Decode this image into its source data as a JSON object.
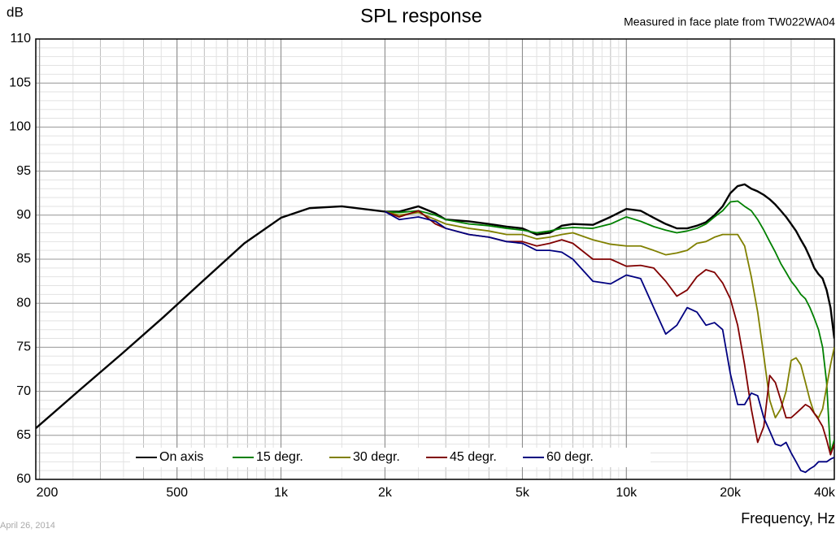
{
  "chart_data": {
    "type": "line",
    "title": "SPL response",
    "subtitle": "Measured in face plate from TW022WA04",
    "y_axis_label": "dB",
    "x_axis_label": "Frequency, Hz",
    "date": "April 26, 2014",
    "x_scale": "log",
    "grid": true,
    "legend_position": "bottom",
    "xlim": [
      195,
      40000
    ],
    "ylim": [
      60,
      110
    ],
    "xticks": [
      200,
      500,
      {
        "value": 1000,
        "label": "1k"
      },
      {
        "value": 2000,
        "label": "2k"
      },
      {
        "value": 5000,
        "label": "5k"
      },
      {
        "value": 10000,
        "label": "10k"
      },
      {
        "value": 20000,
        "label": "20k"
      },
      {
        "value": 40000,
        "label": "40k"
      }
    ],
    "yticks": [
      60,
      65,
      70,
      75,
      80,
      85,
      90,
      95,
      100,
      105,
      110
    ],
    "x": [
      195,
      264,
      347,
      456,
      597,
      783,
      1000,
      1210,
      1500,
      2000,
      2200,
      2500,
      2800,
      3000,
      3500,
      4000,
      4500,
      5000,
      5500,
      6000,
      6500,
      7000,
      8000,
      9000,
      10000,
      11000,
      12000,
      13000,
      14000,
      15000,
      16000,
      17000,
      18000,
      19000,
      20000,
      21000,
      22000,
      23000,
      24000,
      25000,
      26000,
      27000,
      28000,
      29000,
      30000,
      31000,
      32000,
      33000,
      34000,
      35000,
      36000,
      37000,
      38000,
      39000,
      40000
    ],
    "series": [
      {
        "name": "On axis",
        "color": "#000000",
        "values": [
          65.8,
          70.3,
          74.3,
          78.4,
          82.6,
          86.8,
          89.7,
          90.8,
          91.0,
          90.4,
          90.4,
          91.0,
          90.2,
          89.5,
          89.3,
          89.0,
          88.7,
          88.5,
          87.8,
          88.0,
          88.8,
          89.0,
          88.9,
          89.8,
          90.7,
          90.5,
          89.7,
          89.0,
          88.5,
          88.5,
          88.8,
          89.2,
          90.0,
          91.0,
          92.5,
          93.3,
          93.5,
          93.0,
          92.7,
          92.3,
          91.8,
          91.2,
          90.5,
          89.8,
          89.0,
          88.2,
          87.2,
          86.3,
          85.2,
          84.0,
          83.3,
          82.8,
          81.5,
          79.5,
          76.0
        ]
      },
      {
        "name": "15 degr.",
        "color": "#008000",
        "values": [
          null,
          null,
          null,
          null,
          null,
          null,
          null,
          null,
          null,
          90.4,
          90.3,
          90.5,
          90.0,
          89.5,
          89.0,
          88.8,
          88.5,
          88.3,
          88.0,
          88.2,
          88.5,
          88.6,
          88.5,
          89.0,
          89.8,
          89.3,
          88.7,
          88.3,
          88.0,
          88.2,
          88.5,
          89.0,
          89.8,
          90.5,
          91.5,
          91.6,
          91.0,
          90.5,
          89.5,
          88.3,
          87.0,
          85.8,
          84.5,
          83.5,
          82.5,
          81.8,
          81.0,
          80.5,
          79.5,
          78.3,
          77.0,
          75.0,
          71.0,
          63.0,
          64.5
        ]
      },
      {
        "name": "30 degr.",
        "color": "#808000",
        "values": [
          null,
          null,
          null,
          null,
          null,
          null,
          null,
          null,
          null,
          90.4,
          90.0,
          90.3,
          89.5,
          89.0,
          88.5,
          88.2,
          87.8,
          87.8,
          87.3,
          87.5,
          87.8,
          88.0,
          87.2,
          86.7,
          86.5,
          86.5,
          86.0,
          85.5,
          85.7,
          86.0,
          86.8,
          87.0,
          87.5,
          87.8,
          87.8,
          87.8,
          86.5,
          83.0,
          79.0,
          74.0,
          69.0,
          67.0,
          68.0,
          70.0,
          73.5,
          73.8,
          73.0,
          71.0,
          69.0,
          67.5,
          67.0,
          68.0,
          70.5,
          73.0,
          75.0
        ]
      },
      {
        "name": "45 degr.",
        "color": "#800000",
        "values": [
          null,
          null,
          null,
          null,
          null,
          null,
          null,
          null,
          null,
          90.4,
          89.8,
          90.5,
          89.0,
          88.5,
          87.8,
          87.5,
          87.0,
          87.0,
          86.5,
          86.8,
          87.2,
          86.8,
          85.0,
          85.0,
          84.2,
          84.3,
          84.0,
          82.5,
          80.8,
          81.5,
          83.0,
          83.8,
          83.5,
          82.3,
          80.5,
          77.5,
          73.0,
          68.0,
          64.2,
          66.0,
          71.8,
          71.0,
          69.0,
          67.0,
          67.0,
          67.5,
          68.0,
          68.5,
          68.2,
          67.5,
          66.8,
          66.0,
          64.5,
          62.8,
          64.0
        ]
      },
      {
        "name": "60 degr.",
        "color": "#000080",
        "values": [
          null,
          null,
          null,
          null,
          null,
          null,
          null,
          null,
          null,
          90.4,
          89.5,
          89.8,
          89.3,
          88.5,
          87.8,
          87.5,
          87.0,
          86.8,
          86.0,
          86.0,
          85.8,
          85.0,
          82.5,
          82.2,
          83.2,
          82.8,
          79.5,
          76.5,
          77.5,
          79.5,
          79.0,
          77.5,
          77.8,
          77.0,
          72.0,
          68.5,
          68.5,
          69.8,
          69.5,
          67.0,
          65.5,
          64.0,
          63.8,
          64.2,
          63.0,
          62.0,
          61.0,
          60.8,
          61.2,
          61.5,
          62.0,
          62.0,
          62.0,
          62.3,
          62.5
        ]
      }
    ]
  }
}
